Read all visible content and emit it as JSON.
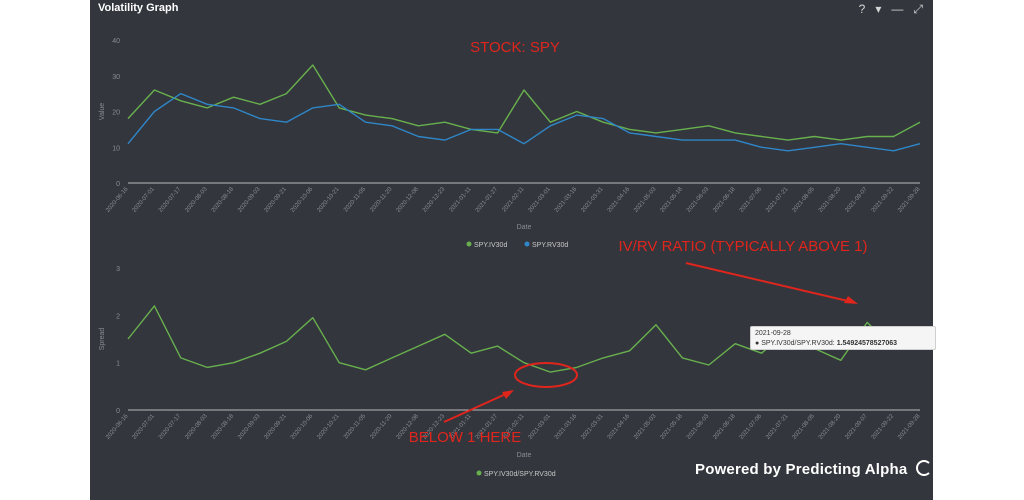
{
  "window": {
    "title": "Volatility Graph",
    "controls": {
      "help": "?",
      "dropdown": "▾",
      "minimize": "—",
      "expand": "⤢"
    }
  },
  "branding": {
    "powered_by": "Powered by Predicting Alpha"
  },
  "annotations": {
    "stock": "STOCK: SPY",
    "ratio": "IV/RV RATIO (TYPICALLY ABOVE 1)",
    "below": "BELOW 1 HERE",
    "color": "#e0251d"
  },
  "tooltip": {
    "date": "2021-09-28",
    "series": "SPY.IV30d/SPY.RV30d:",
    "value": "1.54924578527063"
  },
  "colors": {
    "iv": "#68b04e",
    "rv": "#2f86c8",
    "axis": "#bbbbbb",
    "tick": "#8a8d93"
  },
  "chart_data": [
    {
      "type": "line",
      "ylabel": "Value",
      "xlabel": "Date",
      "ylim": [
        0,
        40
      ],
      "yticks": [
        0,
        10,
        20,
        30,
        40
      ],
      "x": [
        "2020-06-16",
        "2020-07-01",
        "2020-07-17",
        "2020-08-03",
        "2020-08-18",
        "2020-09-03",
        "2020-09-21",
        "2020-10-06",
        "2020-10-21",
        "2020-11-05",
        "2020-11-20",
        "2020-12-08",
        "2020-12-23",
        "2021-01-11",
        "2021-01-27",
        "2021-02-11",
        "2021-03-01",
        "2021-03-16",
        "2021-03-31",
        "2021-04-16",
        "2021-05-03",
        "2021-05-18",
        "2021-06-03",
        "2021-06-18",
        "2021-07-06",
        "2021-07-21",
        "2021-08-05",
        "2021-08-20",
        "2021-09-07",
        "2021-09-22",
        "2021-09-28"
      ],
      "series": [
        {
          "name": "SPY.IV30d",
          "values": [
            18,
            26,
            23,
            21,
            24,
            22,
            25,
            33,
            21,
            19,
            18,
            16,
            17,
            15,
            14,
            26,
            17,
            20,
            17,
            15,
            14,
            15,
            16,
            14,
            13,
            12,
            13,
            12,
            13,
            13,
            17
          ]
        },
        {
          "name": "SPY.RV30d",
          "values": [
            11,
            20,
            25,
            22,
            21,
            18,
            17,
            21,
            22,
            17,
            16,
            13,
            12,
            15,
            15,
            11,
            16,
            19,
            18,
            14,
            13,
            12,
            12,
            12,
            10,
            9,
            10,
            11,
            10,
            9,
            11
          ]
        }
      ],
      "legend": "bottom-center",
      "grid": false
    },
    {
      "type": "line",
      "ylabel": "Spread",
      "xlabel": "Date",
      "ylim": [
        0,
        3
      ],
      "yticks": [
        0,
        1,
        2,
        3
      ],
      "x": [
        "2020-06-16",
        "2020-07-01",
        "2020-07-17",
        "2020-08-03",
        "2020-08-18",
        "2020-09-03",
        "2020-09-21",
        "2020-10-06",
        "2020-10-21",
        "2020-11-05",
        "2020-11-20",
        "2020-12-08",
        "2020-12-23",
        "2021-01-11",
        "2021-01-27",
        "2021-02-11",
        "2021-03-01",
        "2021-03-16",
        "2021-03-31",
        "2021-04-16",
        "2021-05-03",
        "2021-05-18",
        "2021-06-03",
        "2021-06-18",
        "2021-07-06",
        "2021-07-21",
        "2021-08-05",
        "2021-08-20",
        "2021-09-07",
        "2021-09-22",
        "2021-09-28"
      ],
      "series": [
        {
          "name": "SPY.IV30d/SPY.RV30d",
          "values": [
            1.5,
            2.2,
            1.1,
            0.9,
            1.0,
            1.2,
            1.45,
            1.95,
            1.0,
            0.85,
            1.1,
            1.35,
            1.6,
            1.2,
            1.35,
            1.0,
            0.8,
            0.9,
            1.1,
            1.25,
            1.8,
            1.1,
            0.95,
            1.4,
            1.2,
            1.7,
            1.3,
            1.05,
            1.85,
            1.3,
            1.55
          ]
        }
      ],
      "legend": "bottom-center",
      "grid": false
    }
  ]
}
